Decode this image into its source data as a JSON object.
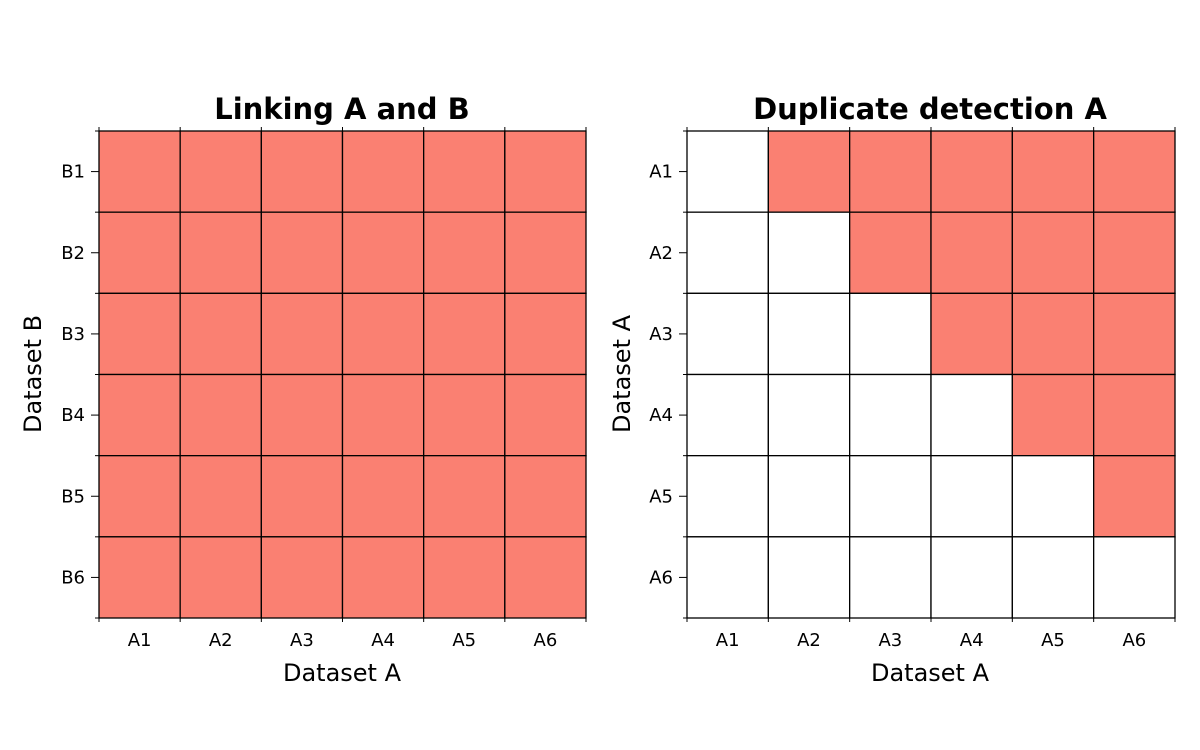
{
  "chart_data": [
    {
      "type": "heatmap",
      "title": "Linking A and B",
      "xlabel": "Dataset A",
      "ylabel": "Dataset B",
      "x_categories": [
        "A1",
        "A2",
        "A3",
        "A4",
        "A5",
        "A6"
      ],
      "y_categories": [
        "B1",
        "B2",
        "B3",
        "B4",
        "B5",
        "B6"
      ],
      "values": [
        [
          1,
          1,
          1,
          1,
          1,
          1
        ],
        [
          1,
          1,
          1,
          1,
          1,
          1
        ],
        [
          1,
          1,
          1,
          1,
          1,
          1
        ],
        [
          1,
          1,
          1,
          1,
          1,
          1
        ],
        [
          1,
          1,
          1,
          1,
          1,
          1
        ],
        [
          1,
          1,
          1,
          1,
          1,
          1
        ]
      ]
    },
    {
      "type": "heatmap",
      "title": "Duplicate detection A",
      "xlabel": "Dataset A",
      "ylabel": "Dataset A",
      "x_categories": [
        "A1",
        "A2",
        "A3",
        "A4",
        "A5",
        "A6"
      ],
      "y_categories": [
        "A1",
        "A2",
        "A3",
        "A4",
        "A5",
        "A6"
      ],
      "values": [
        [
          0,
          1,
          1,
          1,
          1,
          1
        ],
        [
          0,
          0,
          1,
          1,
          1,
          1
        ],
        [
          0,
          0,
          0,
          1,
          1,
          1
        ],
        [
          0,
          0,
          0,
          0,
          1,
          1
        ],
        [
          0,
          0,
          0,
          0,
          0,
          1
        ],
        [
          0,
          0,
          0,
          0,
          0,
          0
        ]
      ]
    }
  ],
  "colors": {
    "filled": "#fa8072",
    "empty": "#ffffff",
    "grid": "#000000"
  }
}
